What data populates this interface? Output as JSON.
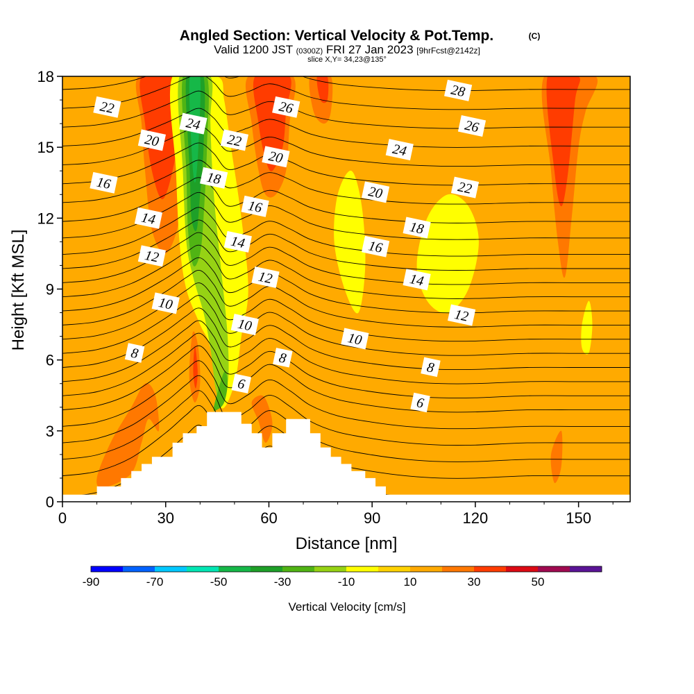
{
  "header": {
    "title": "Angled Section: Vertical Velocity & Pot.Temp.",
    "copyright": "(C)",
    "valid_prefix": "Valid 1200 JST",
    "valid_utc": "(0300Z)",
    "valid_date": "FRI 27 Jan 2023",
    "forecast": "[9hrFcst@2142z]",
    "slice": "slice X,Y= 34,23@135°"
  },
  "chart_data": {
    "type": "heatmap",
    "xlabel": "Distance [nm]",
    "ylabel": "Height [Kft MSL]",
    "xlim": [
      0,
      165
    ],
    "ylim": [
      0,
      18
    ],
    "xticks": [
      0,
      30,
      60,
      90,
      120,
      150
    ],
    "yticks": [
      0,
      3,
      6,
      9,
      12,
      15,
      18
    ],
    "colorbar": {
      "label": "Vertical Velocity [cm/s]",
      "ticks": [
        -90,
        -70,
        -50,
        -30,
        -10,
        10,
        30,
        50
      ],
      "bins": [
        -90,
        -80,
        -70,
        -60,
        -50,
        -40,
        -30,
        -20,
        -10,
        0,
        10,
        20,
        30,
        40,
        50,
        60
      ],
      "colors": [
        "#0000ff",
        "#0062ff",
        "#00c8ff",
        "#00e6b4",
        "#16b848",
        "#1ea028",
        "#50b414",
        "#96d214",
        "#ffff00",
        "#ffd200",
        "#ffaa00",
        "#ff7800",
        "#ff3c00",
        "#dc0a14",
        "#a00a50",
        "#5a1496"
      ]
    },
    "terrain": [
      [
        0,
        0.3
      ],
      [
        10,
        0.3
      ],
      [
        10,
        0.65
      ],
      [
        17,
        0.65
      ],
      [
        17,
        1.0
      ],
      [
        20,
        1.0
      ],
      [
        20,
        1.3
      ],
      [
        23,
        1.3
      ],
      [
        23,
        1.6
      ],
      [
        26,
        1.6
      ],
      [
        26,
        1.9
      ],
      [
        32,
        1.9
      ],
      [
        32,
        2.5
      ],
      [
        35,
        2.5
      ],
      [
        35,
        2.9
      ],
      [
        39,
        2.9
      ],
      [
        39,
        3.2
      ],
      [
        42,
        3.2
      ],
      [
        42,
        3.8
      ],
      [
        52,
        3.8
      ],
      [
        52,
        3.3
      ],
      [
        55,
        3.3
      ],
      [
        55,
        2.9
      ],
      [
        58,
        2.9
      ],
      [
        58,
        2.3
      ],
      [
        61,
        2.3
      ],
      [
        61,
        2.9
      ],
      [
        65,
        2.9
      ],
      [
        65,
        3.5
      ],
      [
        72,
        3.5
      ],
      [
        72,
        2.9
      ],
      [
        75,
        2.9
      ],
      [
        75,
        2.3
      ],
      [
        78,
        2.3
      ],
      [
        78,
        1.9
      ],
      [
        81,
        1.9
      ],
      [
        81,
        1.6
      ],
      [
        84,
        1.6
      ],
      [
        84,
        1.3
      ],
      [
        88,
        1.3
      ],
      [
        88,
        1.0
      ],
      [
        91,
        1.0
      ],
      [
        91,
        0.65
      ],
      [
        94,
        0.65
      ],
      [
        94,
        0.3
      ],
      [
        165,
        0.3
      ]
    ],
    "velocity_regions": [
      {
        "value": 25,
        "poly": [
          [
            34,
            18
          ],
          [
            22,
            18
          ],
          [
            23,
            16
          ],
          [
            24,
            14
          ],
          [
            26,
            11.5
          ],
          [
            30,
            10.5
          ],
          [
            34,
            12
          ],
          [
            35,
            15
          ]
        ]
      },
      {
        "value": 35,
        "poly": [
          [
            33,
            18
          ],
          [
            23,
            18
          ],
          [
            24,
            16
          ],
          [
            26,
            14
          ],
          [
            29,
            12.8
          ],
          [
            32,
            14
          ],
          [
            34,
            16
          ]
        ]
      },
      {
        "value": 25,
        "poly": [
          [
            67,
            18
          ],
          [
            54,
            18
          ],
          [
            55,
            16
          ],
          [
            57,
            14
          ],
          [
            59,
            13
          ],
          [
            62,
            13
          ],
          [
            65,
            14
          ],
          [
            66,
            16
          ]
        ]
      },
      {
        "value": 35,
        "poly": [
          [
            66,
            18
          ],
          [
            56,
            18
          ],
          [
            57,
            16
          ],
          [
            59,
            14.5
          ],
          [
            61,
            14
          ],
          [
            64,
            15
          ],
          [
            65,
            16.5
          ]
        ]
      },
      {
        "value": 25,
        "poly": [
          [
            78,
            18
          ],
          [
            72,
            18
          ],
          [
            73,
            16.5
          ],
          [
            76,
            16
          ],
          [
            78,
            16.5
          ]
        ]
      },
      {
        "value": 35,
        "poly": [
          [
            77,
            18
          ],
          [
            74,
            18
          ],
          [
            75,
            17
          ],
          [
            77,
            17
          ]
        ]
      },
      {
        "value": 25,
        "poly": [
          [
            155,
            18
          ],
          [
            140,
            18
          ],
          [
            142,
            14
          ],
          [
            144,
            11
          ],
          [
            146,
            9.5
          ],
          [
            148,
            12
          ],
          [
            150,
            15
          ],
          [
            152,
            16.5
          ]
        ]
      },
      {
        "value": 35,
        "poly": [
          [
            150,
            18
          ],
          [
            141,
            18
          ],
          [
            143,
            14
          ],
          [
            145,
            12.5
          ],
          [
            147,
            14
          ],
          [
            149,
            17
          ]
        ]
      },
      {
        "value": 25,
        "poly": [
          [
            28,
            3
          ],
          [
            25,
            3.5
          ],
          [
            23,
            2.5
          ],
          [
            20,
            1.2
          ],
          [
            12,
            0.6
          ],
          [
            10,
            1
          ],
          [
            14,
            2.5
          ],
          [
            20,
            4
          ],
          [
            24,
            5
          ],
          [
            27,
            4.5
          ]
        ]
      },
      {
        "value": 15,
        "poly": [
          [
            50,
            3.8
          ],
          [
            48,
            4.5
          ],
          [
            50,
            5
          ],
          [
            55,
            4.5
          ],
          [
            60,
            4
          ],
          [
            64,
            3.5
          ],
          [
            65,
            2.9
          ],
          [
            61,
            2.3
          ],
          [
            58,
            2.3
          ],
          [
            55,
            3.3
          ]
        ]
      },
      {
        "value": 25,
        "poly": [
          [
            58,
            4.5
          ],
          [
            55,
            4.2
          ],
          [
            57,
            3.4
          ],
          [
            59,
            2.5
          ],
          [
            61,
            3.2
          ],
          [
            60,
            4
          ]
        ]
      },
      {
        "value": 15,
        "poly": [
          [
            146,
            3
          ],
          [
            142,
            2.5
          ],
          [
            140,
            1.2
          ],
          [
            143,
            0.4
          ],
          [
            146,
            1
          ],
          [
            147,
            2
          ]
        ]
      },
      {
        "value": 25,
        "poly": [
          [
            145,
            3
          ],
          [
            142,
            2
          ],
          [
            143,
            0.8
          ],
          [
            145,
            1.5
          ]
        ]
      },
      {
        "value": 15,
        "poly": [
          [
            37,
            8
          ],
          [
            35,
            7
          ],
          [
            35,
            5
          ],
          [
            37,
            3.5
          ],
          [
            41,
            4
          ],
          [
            42,
            5.5
          ],
          [
            40,
            7.5
          ]
        ]
      },
      {
        "value": 25,
        "poly": [
          [
            38,
            7.2
          ],
          [
            37,
            6
          ],
          [
            37,
            5
          ],
          [
            38.5,
            4.2
          ],
          [
            40,
            5
          ],
          [
            39.5,
            6.5
          ]
        ]
      },
      {
        "value": 35,
        "poly": [
          [
            38.5,
            6.6
          ],
          [
            38,
            5.5
          ],
          [
            38.7,
            4.8
          ],
          [
            39.3,
            5.5
          ]
        ]
      },
      {
        "value": -5,
        "poly": [
          [
            45,
            18
          ],
          [
            32,
            18
          ],
          [
            33,
            14
          ],
          [
            34,
            11
          ],
          [
            36,
            9
          ],
          [
            40,
            7.5
          ],
          [
            43,
            6.5
          ],
          [
            46,
            4
          ],
          [
            50,
            5
          ],
          [
            52,
            7
          ],
          [
            54,
            9
          ],
          [
            52,
            12
          ],
          [
            49,
            15
          ],
          [
            47,
            17
          ]
        ]
      },
      {
        "value": -15,
        "poly": [
          [
            43,
            18
          ],
          [
            34,
            18
          ],
          [
            35,
            14
          ],
          [
            36,
            11
          ],
          [
            38,
            9.5
          ],
          [
            41,
            8
          ],
          [
            43,
            6.5
          ],
          [
            45,
            4.5
          ],
          [
            48,
            5
          ],
          [
            48,
            7
          ],
          [
            46,
            10
          ],
          [
            44,
            13
          ],
          [
            43,
            16
          ]
        ]
      },
      {
        "value": -25,
        "poly": [
          [
            42,
            18
          ],
          [
            35,
            18
          ],
          [
            36,
            14
          ],
          [
            36.5,
            11.5
          ],
          [
            38,
            10
          ],
          [
            40,
            10.5
          ],
          [
            41,
            12
          ],
          [
            42,
            15
          ]
        ]
      },
      {
        "value": -35,
        "poly": [
          [
            41,
            18
          ],
          [
            36,
            18
          ],
          [
            37,
            14
          ],
          [
            37.5,
            12
          ],
          [
            39,
            11.5
          ],
          [
            40,
            13
          ],
          [
            41,
            15
          ]
        ]
      },
      {
        "value": -45,
        "poly": [
          [
            40,
            18
          ],
          [
            37,
            18
          ],
          [
            37.5,
            15
          ],
          [
            38.5,
            13.5
          ],
          [
            39.5,
            15
          ]
        ]
      },
      {
        "value": -25,
        "poly": [
          [
            47,
            5.5
          ],
          [
            44,
            4
          ],
          [
            45,
            3.9
          ],
          [
            47,
            4.2
          ],
          [
            48,
            5
          ]
        ]
      },
      {
        "value": -5,
        "poly": [
          [
            84,
            14
          ],
          [
            80,
            13
          ],
          [
            79,
            11
          ],
          [
            82,
            9
          ],
          [
            86,
            8
          ],
          [
            88,
            10
          ],
          [
            87,
            12.5
          ]
        ]
      },
      {
        "value": -5,
        "poly": [
          [
            112,
            13
          ],
          [
            106,
            12
          ],
          [
            103,
            10
          ],
          [
            106,
            8.5
          ],
          [
            112,
            8
          ],
          [
            118,
            9
          ],
          [
            121,
            11
          ],
          [
            118,
            12.5
          ]
        ]
      },
      {
        "value": -5,
        "poly": [
          [
            153,
            8.5
          ],
          [
            151,
            7.5
          ],
          [
            151,
            6.5
          ],
          [
            153,
            6.3
          ],
          [
            154,
            7.5
          ]
        ]
      }
    ],
    "theta_isentropes": {
      "levels": [
        3,
        4,
        5,
        6,
        7,
        8,
        9,
        10,
        11,
        12,
        13,
        14,
        15,
        16,
        17,
        18,
        19,
        20,
        21,
        22,
        23,
        24,
        25,
        26,
        27,
        28,
        29
      ],
      "x": [
        0,
        10,
        20,
        30,
        36,
        40,
        44,
        48,
        54,
        60,
        66,
        72,
        80,
        90,
        100,
        110,
        120,
        135,
        150,
        165
      ],
      "base_height": [
        -0.7,
        0.1,
        1.0,
        1.7,
        2.4,
        3.1,
        3.8,
        4.4,
        5.0,
        5.6,
        6.2,
        6.8,
        7.4,
        8.0,
        8.6,
        9.2,
        9.8,
        10.4,
        11.1,
        11.8,
        12.6,
        13.4,
        14.2,
        15.0,
        15.8,
        16.6,
        17.4
      ],
      "perturbation_kft": [
        0.1,
        0.3,
        0.9,
        2.0,
        2.8,
        3.2,
        2.4,
        1.2,
        1.6,
        2.3,
        1.8,
        1.1,
        0.6,
        0.3,
        0.1,
        0.0,
        0.0,
        0.1,
        0.1,
        0.1
      ]
    },
    "contour_labels": [
      {
        "text": "22",
        "x": 13,
        "y": 16.7
      },
      {
        "text": "20",
        "x": 26,
        "y": 15.3
      },
      {
        "text": "24",
        "x": 38,
        "y": 16.0
      },
      {
        "text": "26",
        "x": 65,
        "y": 16.7
      },
      {
        "text": "22",
        "x": 50,
        "y": 15.3
      },
      {
        "text": "20",
        "x": 62,
        "y": 14.6
      },
      {
        "text": "18",
        "x": 44,
        "y": 13.7
      },
      {
        "text": "16",
        "x": 12,
        "y": 13.5
      },
      {
        "text": "16",
        "x": 56,
        "y": 12.5
      },
      {
        "text": "14",
        "x": 25,
        "y": 12.0
      },
      {
        "text": "14",
        "x": 51,
        "y": 11.0
      },
      {
        "text": "12",
        "x": 26,
        "y": 10.4
      },
      {
        "text": "12",
        "x": 59,
        "y": 9.5
      },
      {
        "text": "10",
        "x": 30,
        "y": 8.4
      },
      {
        "text": "10",
        "x": 53,
        "y": 7.5
      },
      {
        "text": "8",
        "x": 21,
        "y": 6.3
      },
      {
        "text": "8",
        "x": 64,
        "y": 6.1
      },
      {
        "text": "6",
        "x": 52,
        "y": 5.0
      },
      {
        "text": "28",
        "x": 115,
        "y": 17.4
      },
      {
        "text": "26",
        "x": 119,
        "y": 15.9
      },
      {
        "text": "24",
        "x": 98,
        "y": 14.9
      },
      {
        "text": "22",
        "x": 117,
        "y": 13.3
      },
      {
        "text": "20",
        "x": 91,
        "y": 13.1
      },
      {
        "text": "18",
        "x": 103,
        "y": 11.6
      },
      {
        "text": "16",
        "x": 91,
        "y": 10.8
      },
      {
        "text": "14",
        "x": 103,
        "y": 9.4
      },
      {
        "text": "12",
        "x": 116,
        "y": 7.9
      },
      {
        "text": "10",
        "x": 85,
        "y": 6.9
      },
      {
        "text": "8",
        "x": 107,
        "y": 5.7
      },
      {
        "text": "6",
        "x": 104,
        "y": 4.2
      }
    ]
  },
  "colors": {
    "background_velocity": "#ffaa00",
    "terrain": "#ffffff",
    "isentrope": "#000000",
    "frame": "#000000"
  }
}
